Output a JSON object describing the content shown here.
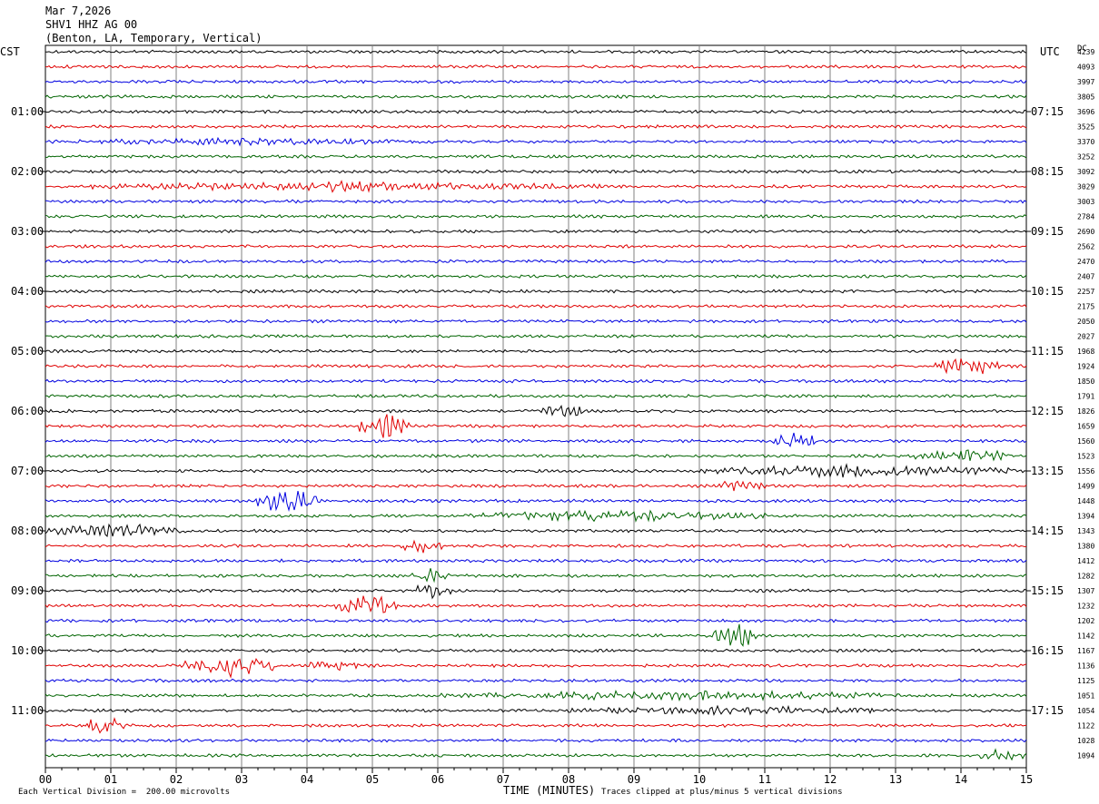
{
  "header": {
    "date": "Mar 7,2026",
    "station": "SHV1 HHZ AG 00",
    "location": "(Benton, LA, Temporary, Vertical)"
  },
  "left_zone": "CST",
  "right_zone": "UTC",
  "dc_label": "DC",
  "footer": {
    "scale_note": "Each Vertical Division =  200.00 microvolts",
    "xlabel": "TIME (MINUTES)",
    "clip_note": "Traces clipped at plus/minus 5 vertical divisions"
  },
  "colors": {
    "trace_cycle": [
      "#000000",
      "#e00000",
      "#0000e0",
      "#006400"
    ],
    "grid": "#808080"
  },
  "chart_data": {
    "type": "line",
    "title": "SHV1 HHZ AG 00",
    "xlabel": "TIME (MINUTES)",
    "xlim": [
      0,
      15
    ],
    "x_tick_labels": [
      "00",
      "01",
      "02",
      "03",
      "04",
      "05",
      "06",
      "07",
      "08",
      "09",
      "10",
      "11",
      "12",
      "13",
      "14",
      "15"
    ],
    "row_count": 48,
    "row_minutes": 15,
    "left_time_labels": [
      "01:00",
      "02:00",
      "03:00",
      "04:00",
      "05:00",
      "06:00",
      "07:00",
      "08:00",
      "09:00",
      "10:00",
      "11:00"
    ],
    "right_time_labels": [
      "07:15",
      "08:15",
      "09:15",
      "10:15",
      "11:15",
      "12:15",
      "13:15",
      "14:15",
      "15:15",
      "16:15",
      "17:15"
    ],
    "dc_offsets": [
      4239,
      4093,
      3997,
      3805,
      3696,
      3525,
      3370,
      3252,
      3092,
      3029,
      3003,
      2784,
      2690,
      2562,
      2470,
      2407,
      2257,
      2175,
      2050,
      2027,
      1968,
      1924,
      1850,
      1791,
      1826,
      1659,
      1560,
      1523,
      1556,
      1499,
      1448,
      1394,
      1343,
      1380,
      1412,
      1282,
      1307,
      1232,
      1202,
      1142,
      1167,
      1136,
      1125,
      1051,
      1054,
      1122,
      1028,
      1094
    ],
    "events": [
      {
        "row": 6,
        "start_min": 0.0,
        "end_min": 6.2,
        "amp": 1.5
      },
      {
        "row": 9,
        "start_min": 0.5,
        "end_min": 8.5,
        "amp": 2.0
      },
      {
        "row": 21,
        "start_min": 13.6,
        "end_min": 14.6,
        "amp": 4.5
      },
      {
        "row": 24,
        "start_min": 7.6,
        "end_min": 8.2,
        "amp": 3.5
      },
      {
        "row": 25,
        "start_min": 4.8,
        "end_min": 5.6,
        "amp": 5.0
      },
      {
        "row": 26,
        "start_min": 11.1,
        "end_min": 11.8,
        "amp": 4.0
      },
      {
        "row": 27,
        "start_min": 13.3,
        "end_min": 14.8,
        "amp": 3.0
      },
      {
        "row": 28,
        "start_min": 9.8,
        "end_min": 15.0,
        "amp": 2.5
      },
      {
        "row": 29,
        "start_min": 10.3,
        "end_min": 11.0,
        "amp": 3.0
      },
      {
        "row": 30,
        "start_min": 3.2,
        "end_min": 4.2,
        "amp": 5.0
      },
      {
        "row": 31,
        "start_min": 6.3,
        "end_min": 11.0,
        "amp": 2.5
      },
      {
        "row": 32,
        "start_min": 0.0,
        "end_min": 2.2,
        "amp": 3.0
      },
      {
        "row": 33,
        "start_min": 5.4,
        "end_min": 6.1,
        "amp": 3.0
      },
      {
        "row": 35,
        "start_min": 5.5,
        "end_min": 6.2,
        "amp": 3.0
      },
      {
        "row": 36,
        "start_min": 5.6,
        "end_min": 6.2,
        "amp": 3.0
      },
      {
        "row": 37,
        "start_min": 4.4,
        "end_min": 5.4,
        "amp": 5.0
      },
      {
        "row": 39,
        "start_min": 10.2,
        "end_min": 11.0,
        "amp": 4.5
      },
      {
        "row": 41,
        "start_min": 2.1,
        "end_min": 3.6,
        "amp": 5.0
      },
      {
        "row": 41,
        "start_min": 4.0,
        "end_min": 4.8,
        "amp": 3.5
      },
      {
        "row": 43,
        "start_min": 6.0,
        "end_min": 13.5,
        "amp": 2.0
      },
      {
        "row": 44,
        "start_min": 8.0,
        "end_min": 13.0,
        "amp": 2.0
      },
      {
        "row": 45,
        "start_min": 0.6,
        "end_min": 1.2,
        "amp": 4.0
      },
      {
        "row": 47,
        "start_min": 14.3,
        "end_min": 15.0,
        "amp": 3.0
      }
    ]
  }
}
